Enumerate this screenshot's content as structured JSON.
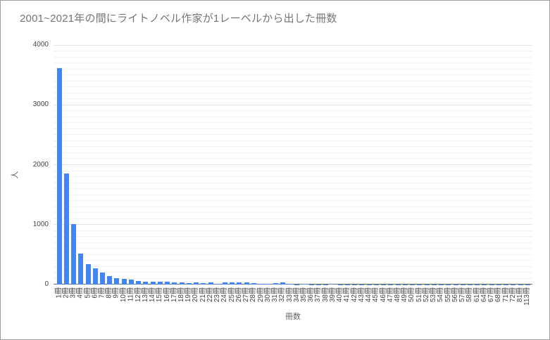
{
  "chart_data": {
    "type": "bar",
    "title": "2001~2021年の間にライトノベル作家が1レーベルから出した冊数",
    "xlabel": "冊数",
    "ylabel": "人",
    "ylim": [
      0,
      4000
    ],
    "yticks": [
      0,
      1000,
      2000,
      3000,
      4000
    ],
    "minor_grid_step": 100,
    "major_grid_step": 1000,
    "grid": "on",
    "legend_position": "none",
    "bar_color": "#4285f4",
    "categories": [
      "1冊",
      "2冊",
      "3冊",
      "4冊",
      "5冊",
      "6冊",
      "7冊",
      "8冊",
      "9冊",
      "10冊",
      "11冊",
      "12冊",
      "13冊",
      "14冊",
      "15冊",
      "16冊",
      "17冊",
      "18冊",
      "19冊",
      "20冊",
      "21冊",
      "22冊",
      "23冊",
      "24冊",
      "25冊",
      "26冊",
      "27冊",
      "28冊",
      "29冊",
      "30冊",
      "31冊",
      "32冊",
      "33冊",
      "34冊",
      "35冊",
      "36冊",
      "37冊",
      "38冊",
      "39冊",
      "40冊",
      "41冊",
      "42冊",
      "43冊",
      "44冊",
      "45冊",
      "46冊",
      "47冊",
      "48冊",
      "49冊",
      "50冊",
      "51冊",
      "52冊",
      "53冊",
      "54冊",
      "55冊",
      "56冊",
      "57冊",
      "58冊",
      "61冊",
      "64冊",
      "67冊",
      "68冊",
      "71冊",
      "72冊",
      "81冊",
      "113冊"
    ],
    "values": [
      3610,
      1850,
      1010,
      520,
      345,
      265,
      195,
      140,
      105,
      90,
      80,
      60,
      50,
      45,
      50,
      45,
      40,
      35,
      25,
      35,
      25,
      30,
      10,
      30,
      40,
      30,
      30,
      20,
      12,
      8,
      20,
      30,
      8,
      6,
      8,
      6,
      5,
      6,
      8,
      5,
      4,
      6,
      4,
      5,
      4,
      4,
      4,
      3,
      6,
      5,
      3,
      3,
      3,
      4,
      3,
      2,
      2,
      2,
      2,
      1,
      1,
      1,
      1,
      1,
      1,
      1
    ]
  },
  "colors": {
    "background": "#ffffff",
    "border": "#9e9e9e",
    "bar": "#4285f4",
    "major_gridline": "#e3e3e3",
    "minor_gridline": "#f2f2f2",
    "axis_line": "#6e6e6e",
    "title_text": "#757575",
    "tick_text": "#444444",
    "axis_title_text": "#5f6368"
  }
}
